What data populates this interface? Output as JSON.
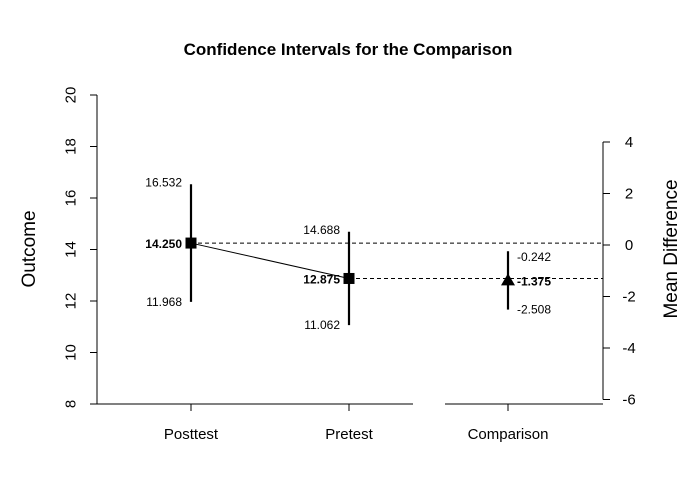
{
  "chart_data": {
    "type": "error-bar",
    "title": "Confidence Intervals for the Comparison",
    "ylabel_left": "Outcome",
    "ylabel_right": "Mean Difference",
    "ylim_left": [
      8,
      20
    ],
    "yticks_left": [
      "8",
      "10",
      "12",
      "14",
      "16",
      "18",
      "20"
    ],
    "ylim_right": [
      -6,
      4
    ],
    "yticks_right": [
      "-6",
      "-4",
      "-2",
      "0",
      "2",
      "4"
    ],
    "categories": [
      "Posttest",
      "Pretest",
      "Comparison"
    ],
    "means": [
      {
        "name": "Posttest",
        "mean": 14.25,
        "lower": 11.968,
        "upper": 16.532,
        "mean_label": "14.250",
        "lower_label": "11.968",
        "upper_label": "16.532"
      },
      {
        "name": "Pretest",
        "mean": 12.875,
        "lower": 11.062,
        "upper": 14.688,
        "mean_label": "12.875",
        "lower_label": "11.062",
        "upper_label": "14.688"
      }
    ],
    "comparison": {
      "name": "Comparison",
      "mean": -1.375,
      "lower": -2.508,
      "upper": -0.242,
      "mean_label": "-1.375",
      "lower_label": "-2.508",
      "upper_label": "-0.242"
    },
    "grid": false,
    "legend": "none"
  }
}
